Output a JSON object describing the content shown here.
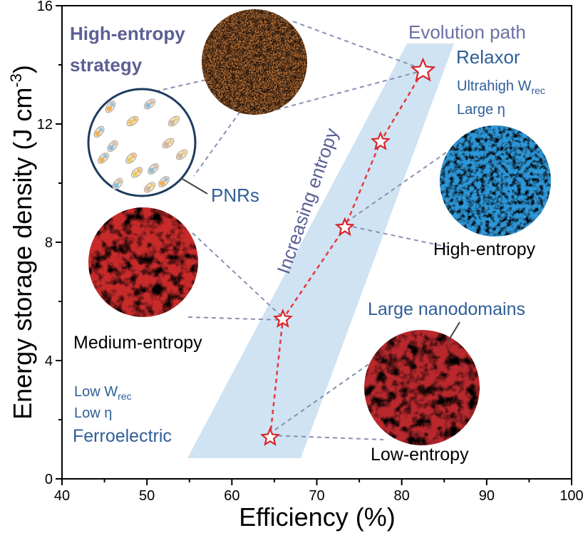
{
  "colors": {
    "band": "#cfe3f3",
    "path": "#e8383d",
    "star": "#d7262b",
    "blue_text": "#2f5e97",
    "purple_text": "#5c5f94",
    "connector": "#8a8fb5",
    "axis": "#000000"
  },
  "chart_data": {
    "type": "line",
    "title": "",
    "xlabel": "Efficiency (%)",
    "ylabel_main": "Energy storage density (J cm",
    "ylabel_sup": "-3",
    "ylabel_end": ")",
    "xlim": [
      40,
      100
    ],
    "ylim": [
      0,
      16
    ],
    "x_ticks": [
      "40",
      "50",
      "60",
      "70",
      "80",
      "90",
      "100"
    ],
    "y_ticks": [
      "0",
      "4",
      "8",
      "12",
      "16"
    ],
    "grid": false,
    "series": [
      {
        "x": [
          64.5,
          66.0,
          73.3,
          77.5,
          82.5
        ],
        "y": [
          1.4,
          5.4,
          8.5,
          11.4,
          13.8
        ]
      }
    ]
  },
  "labels": {
    "strategy_line1": "High-entropy",
    "strategy_line2": "strategy",
    "evolution_path": "Evolution path",
    "relaxor": "Relaxor",
    "ultrahigh_prefix": "Ultrahigh W",
    "ultrahigh_sub": "rec",
    "large_eta": "Large η",
    "increasing_entropy": "Increasing entropy",
    "pnrs": "PNRs",
    "high_entropy": "High-entropy",
    "medium_entropy": "Medium-entropy",
    "large_nanodomains": "Large nanodomains",
    "low_w_prefix": "Low W",
    "low_w_sub": "rec",
    "low_eta": "Low η",
    "ferroelectric": "Ferroelectric",
    "low_entropy": "Low-entropy"
  }
}
